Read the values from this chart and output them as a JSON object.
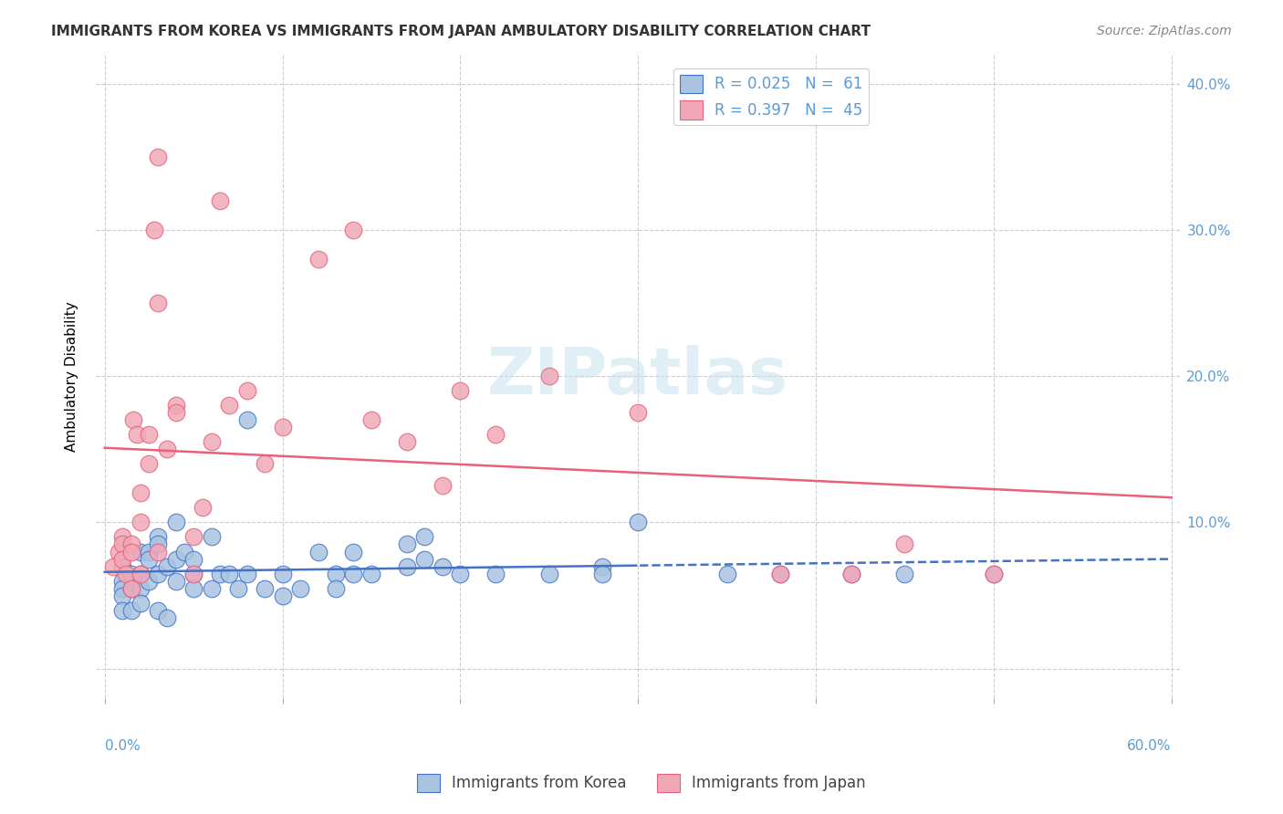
{
  "title": "IMMIGRANTS FROM KOREA VS IMMIGRANTS FROM JAPAN AMBULATORY DISABILITY CORRELATION CHART",
  "source": "Source: ZipAtlas.com",
  "ylabel": "Ambulatory Disability",
  "xlim": [
    0.0,
    0.6
  ],
  "ylim": [
    -0.02,
    0.42
  ],
  "color_korea": "#a8c4e0",
  "color_japan": "#f0a8b8",
  "line_color_korea": "#4472c4",
  "line_color_japan": "#e8607a",
  "korea_x": [
    0.01,
    0.01,
    0.01,
    0.01,
    0.01,
    0.015,
    0.015,
    0.015,
    0.02,
    0.02,
    0.02,
    0.02,
    0.025,
    0.025,
    0.025,
    0.03,
    0.03,
    0.03,
    0.03,
    0.035,
    0.035,
    0.04,
    0.04,
    0.04,
    0.045,
    0.05,
    0.05,
    0.05,
    0.06,
    0.06,
    0.065,
    0.07,
    0.075,
    0.08,
    0.08,
    0.09,
    0.1,
    0.1,
    0.11,
    0.12,
    0.13,
    0.13,
    0.14,
    0.14,
    0.15,
    0.17,
    0.17,
    0.18,
    0.18,
    0.19,
    0.2,
    0.22,
    0.25,
    0.28,
    0.28,
    0.3,
    0.35,
    0.38,
    0.42,
    0.45,
    0.5
  ],
  "korea_y": [
    0.07,
    0.06,
    0.055,
    0.05,
    0.04,
    0.065,
    0.055,
    0.04,
    0.08,
    0.065,
    0.055,
    0.045,
    0.08,
    0.075,
    0.06,
    0.09,
    0.085,
    0.065,
    0.04,
    0.07,
    0.035,
    0.1,
    0.075,
    0.06,
    0.08,
    0.065,
    0.075,
    0.055,
    0.09,
    0.055,
    0.065,
    0.065,
    0.055,
    0.17,
    0.065,
    0.055,
    0.065,
    0.05,
    0.055,
    0.08,
    0.065,
    0.055,
    0.08,
    0.065,
    0.065,
    0.085,
    0.07,
    0.09,
    0.075,
    0.07,
    0.065,
    0.065,
    0.065,
    0.07,
    0.065,
    0.1,
    0.065,
    0.065,
    0.065,
    0.065,
    0.065
  ],
  "japan_x": [
    0.005,
    0.008,
    0.01,
    0.01,
    0.01,
    0.012,
    0.015,
    0.015,
    0.015,
    0.016,
    0.018,
    0.02,
    0.02,
    0.02,
    0.025,
    0.025,
    0.028,
    0.03,
    0.03,
    0.03,
    0.035,
    0.04,
    0.04,
    0.05,
    0.05,
    0.055,
    0.06,
    0.065,
    0.07,
    0.08,
    0.09,
    0.1,
    0.12,
    0.14,
    0.15,
    0.17,
    0.19,
    0.2,
    0.22,
    0.25,
    0.3,
    0.38,
    0.42,
    0.45,
    0.5
  ],
  "japan_y": [
    0.07,
    0.08,
    0.09,
    0.085,
    0.075,
    0.065,
    0.085,
    0.08,
    0.055,
    0.17,
    0.16,
    0.12,
    0.1,
    0.065,
    0.16,
    0.14,
    0.3,
    0.25,
    0.35,
    0.08,
    0.15,
    0.18,
    0.175,
    0.09,
    0.065,
    0.11,
    0.155,
    0.32,
    0.18,
    0.19,
    0.14,
    0.165,
    0.28,
    0.3,
    0.17,
    0.155,
    0.125,
    0.19,
    0.16,
    0.2,
    0.175,
    0.065,
    0.065,
    0.085,
    0.065
  ],
  "legend_labels": [
    "R = 0.025   N =  61",
    "R = 0.397   N =  45"
  ],
  "bottom_legend_labels": [
    "Immigrants from Korea",
    "Immigrants from Japan"
  ],
  "ytick_vals": [
    0.0,
    0.1,
    0.2,
    0.3,
    0.4
  ],
  "ytick_labels_right": [
    "",
    "10.0%",
    "20.0%",
    "30.0%",
    "40.0%"
  ],
  "line_split_x": 0.3,
  "watermark_text": "ZIPatlas"
}
